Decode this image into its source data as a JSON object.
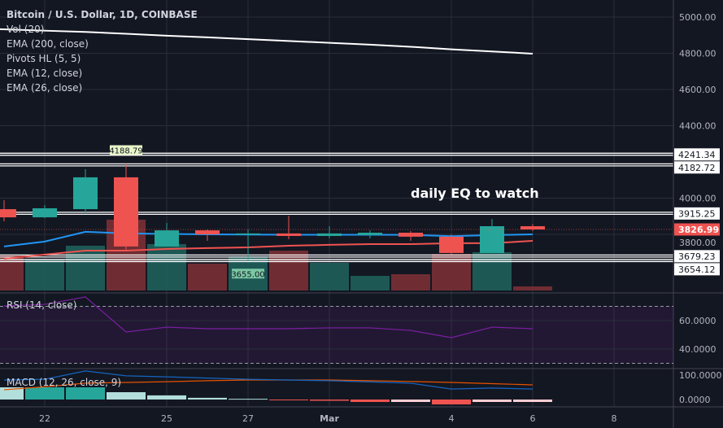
{
  "header": {
    "title": "Bitcoin / U.S. Dollar, 1D, COINBASE",
    "indicators": [
      "Vol (20)",
      "EMA (200, close)",
      "Pivots HL (5, 5)",
      "EMA (12, close)",
      "EMA (26, close)"
    ]
  },
  "annotation": "daily EQ to watch",
  "colors": {
    "bg": "#131722",
    "up": "#26a69a",
    "down": "#ef5350",
    "ema12": "#2196f3",
    "ema26": "#ef5350",
    "ema200": "#ffffff",
    "rsi": "#7b1fa2",
    "macd": "#1565c0",
    "signal": "#e65100"
  },
  "price_axis": {
    "ticks": [
      "5000.00",
      "4800.00",
      "4600.00",
      "4400.00",
      "4000.00",
      "3800.00"
    ],
    "tick_values": [
      5000,
      4800,
      4600,
      4400,
      4000,
      3800
    ]
  },
  "levels": [
    {
      "value": 4241.34,
      "label": "4241.34"
    },
    {
      "value": 4182.72,
      "label": "4182.72"
    },
    {
      "value": 3915.25,
      "label": "3915.25"
    },
    {
      "value": 3679.23,
      "label": "3679.23"
    },
    {
      "value": 3654.12,
      "label": "3654.12"
    }
  ],
  "last_price": {
    "value": 3826.99,
    "label": "3826.99"
  },
  "pivots": [
    {
      "label": "4188.79",
      "value": 4188.79,
      "day": 3,
      "type": "high"
    },
    {
      "label": "3655.00",
      "value": 3655,
      "day": 6,
      "type": "low"
    }
  ],
  "time_axis": [
    {
      "label": "22",
      "day": 1
    },
    {
      "label": "25",
      "day": 4
    },
    {
      "label": "27",
      "day": 6
    },
    {
      "label": "Mar",
      "day": 8
    },
    {
      "label": "4",
      "day": 11
    },
    {
      "label": "6",
      "day": 13
    },
    {
      "label": "8",
      "day": 15
    }
  ],
  "candles": [
    {
      "o": 3939,
      "h": 3989,
      "l": 3872,
      "c": 3894,
      "v": 44
    },
    {
      "o": 3894,
      "h": 3962,
      "l": 3890,
      "c": 3944,
      "v": 38
    },
    {
      "o": 3939,
      "h": 4160,
      "l": 3912,
      "c": 4115,
      "v": 55
    },
    {
      "o": 4115,
      "h": 4188.79,
      "l": 3715,
      "c": 3733,
      "v": 87
    },
    {
      "o": 3733,
      "h": 3863,
      "l": 3733,
      "c": 3822,
      "v": 57
    },
    {
      "o": 3822,
      "h": 3827,
      "l": 3764,
      "c": 3800,
      "v": 33
    },
    {
      "o": 3802,
      "h": 3827,
      "l": 3655,
      "c": 3805,
      "v": 42
    },
    {
      "o": 3805,
      "h": 3903,
      "l": 3773,
      "c": 3791,
      "v": 49
    },
    {
      "o": 3791,
      "h": 3845,
      "l": 3778,
      "c": 3805,
      "v": 34
    },
    {
      "o": 3796,
      "h": 3822,
      "l": 3778,
      "c": 3809,
      "v": 18
    },
    {
      "o": 3809,
      "h": 3818,
      "l": 3764,
      "c": 3787,
      "v": 20
    },
    {
      "o": 3787,
      "h": 3800,
      "l": 3688,
      "c": 3697,
      "v": 45
    },
    {
      "o": 3697,
      "h": 3885,
      "l": 3697,
      "c": 3845,
      "v": 47
    },
    {
      "o": 3845,
      "h": 3858,
      "l": 3818,
      "c": 3827,
      "v": 5
    }
  ],
  "ema12": [
    3733,
    3760,
    3814,
    3805,
    3802,
    3800,
    3799,
    3798,
    3798,
    3798,
    3797,
    3790,
    3796,
    3800
  ],
  "ema26": [
    3665,
    3688,
    3710,
    3710,
    3719,
    3724,
    3728,
    3737,
    3742,
    3746,
    3746,
    3751,
    3751,
    3764
  ],
  "ema200": [
    4933,
    4925,
    4918,
    4908,
    4897,
    4888,
    4878,
    4868,
    4858,
    4848,
    4836,
    4822,
    4810,
    4798
  ],
  "rsi": {
    "label": "RSI (14, close)",
    "values": [
      70.3,
      71.4,
      76.6,
      52,
      55.4,
      54.3,
      54.3,
      54.3,
      54.9,
      54.9,
      53.1,
      48,
      55.4,
      54.3
    ],
    "ticks": [
      "60.0000",
      "40.0000"
    ],
    "tick_values": [
      60,
      40
    ],
    "upper": 70,
    "lower": 30
  },
  "macd": {
    "label": "MACD (12, 26, close, 9)",
    "macd": [
      80,
      83,
      117,
      97,
      93,
      88,
      83,
      80,
      77,
      72,
      67,
      43,
      47,
      43
    ],
    "signal": [
      40,
      52,
      67,
      70,
      73,
      77,
      80,
      80,
      80,
      77,
      74,
      70,
      65,
      60
    ],
    "hist": [
      50,
      50,
      50,
      30,
      17,
      7,
      3,
      -2,
      -5,
      -10,
      -10,
      -20,
      -10,
      -10
    ],
    "ticks": [
      "100.0000",
      "0.0000"
    ],
    "tick_values": [
      100,
      0
    ]
  }
}
